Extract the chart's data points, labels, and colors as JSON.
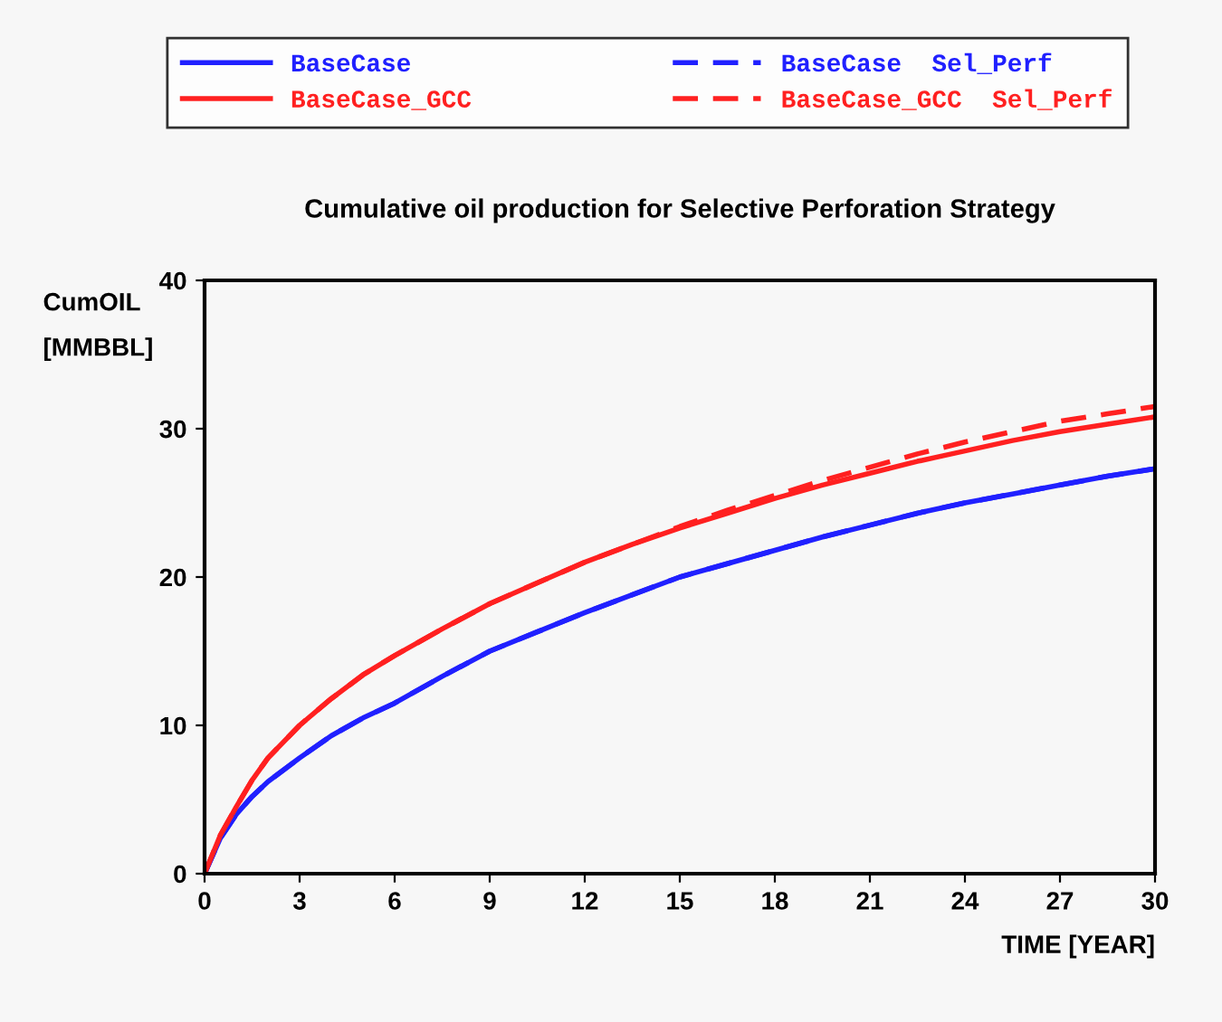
{
  "chart_data": {
    "type": "line",
    "title": "Cumulative oil production for Selective Perforation Strategy",
    "xlabel": "TIME [YEAR]",
    "ylabel": "CumOIL\n[MMBBL]",
    "x": [
      0,
      0.5,
      1,
      1.5,
      2,
      3,
      4,
      5,
      6,
      7.5,
      9,
      10.5,
      12,
      13.5,
      15,
      16.5,
      18,
      19.5,
      21,
      22.5,
      24,
      25.5,
      27,
      28.5,
      30
    ],
    "series": [
      {
        "name": "BaseCase",
        "color": "#2020ff",
        "line_style": "solid",
        "values": [
          0,
          2.4,
          4.0,
          5.2,
          6.2,
          7.8,
          9.3,
          10.5,
          11.5,
          13.3,
          15.0,
          16.3,
          17.6,
          18.8,
          20.0,
          20.9,
          21.8,
          22.7,
          23.5,
          24.3,
          25.0,
          25.6,
          26.2,
          26.8,
          27.3
        ]
      },
      {
        "name": "BaseCase_GCC",
        "color": "#ff2020",
        "line_style": "solid",
        "values": [
          0,
          2.6,
          4.5,
          6.3,
          7.8,
          10.0,
          11.8,
          13.4,
          14.7,
          16.5,
          18.2,
          19.6,
          21.0,
          22.2,
          23.3,
          24.3,
          25.3,
          26.2,
          27.0,
          27.8,
          28.5,
          29.2,
          29.8,
          30.3,
          30.8
        ]
      },
      {
        "name": "BaseCase  Sel_Perf",
        "color": "#2020ff",
        "line_style": "dashed",
        "values": [
          0,
          2.4,
          4.0,
          5.2,
          6.2,
          7.8,
          9.3,
          10.5,
          11.5,
          13.3,
          15.0,
          16.3,
          17.6,
          18.8,
          20.0,
          20.9,
          21.8,
          22.7,
          23.5,
          24.3,
          25.0,
          25.6,
          26.2,
          26.8,
          27.3
        ]
      },
      {
        "name": "BaseCase_GCC  Sel_Perf",
        "color": "#ff2020",
        "line_style": "dashed",
        "values": [
          0,
          2.6,
          4.5,
          6.3,
          7.8,
          10.0,
          11.8,
          13.4,
          14.7,
          16.5,
          18.2,
          19.6,
          21.0,
          22.2,
          23.4,
          24.5,
          25.5,
          26.5,
          27.4,
          28.3,
          29.1,
          29.8,
          30.5,
          31.0,
          31.5
        ]
      }
    ],
    "xlim": [
      0,
      30
    ],
    "xticks": [
      0,
      3,
      6,
      9,
      12,
      15,
      18,
      21,
      24,
      27,
      30
    ],
    "ylim": [
      0,
      40
    ],
    "yticks": [
      0,
      10,
      20,
      30,
      40
    ],
    "grid": false,
    "legend": "top",
    "marker": "none"
  }
}
